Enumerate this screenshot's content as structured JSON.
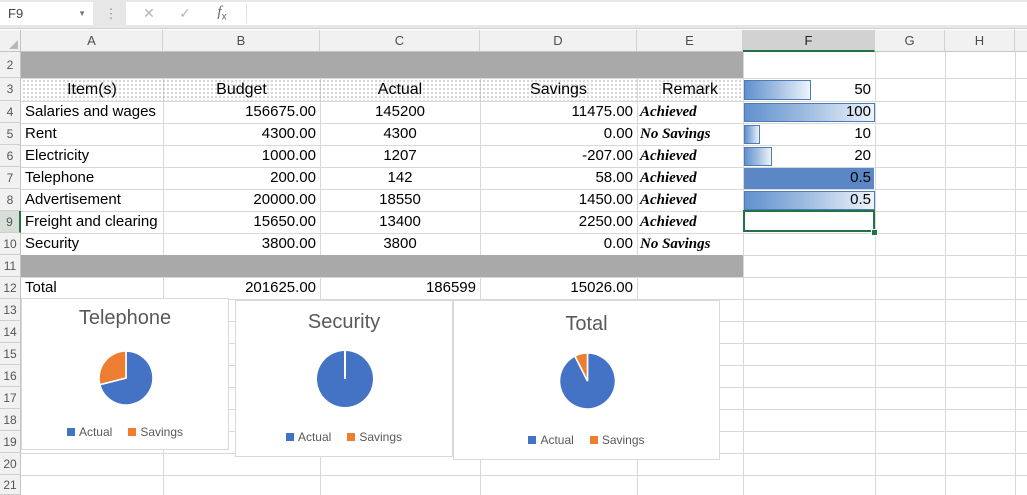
{
  "formula_bar": {
    "name_box": "F9",
    "cancel_label": "✕",
    "enter_label": "✓",
    "formula_value": ""
  },
  "grid": {
    "col_headers": [
      "A",
      "B",
      "C",
      "D",
      "E",
      "F",
      "G",
      "H"
    ],
    "first_row": 2,
    "last_row": 21
  },
  "selection": {
    "ref": "F9",
    "active_col": "F",
    "active_row": 9
  },
  "table": {
    "headers": {
      "item": "Item(s)",
      "budget": "Budget",
      "actual": "Actual",
      "savings": "Savings",
      "remark": "Remark"
    },
    "rows": [
      {
        "item": "Salaries and wages",
        "budget": "156675.00",
        "actual": "145200",
        "savings": "11475.00",
        "remark": "Achieved"
      },
      {
        "item": "Rent",
        "budget": "4300.00",
        "actual": "4300",
        "savings": "0.00",
        "remark": "No Savings"
      },
      {
        "item": "Electricity",
        "budget": "1000.00",
        "actual": "1207",
        "savings": "-207.00",
        "remark": "Achieved"
      },
      {
        "item": "Telephone",
        "budget": "200.00",
        "actual": "142",
        "savings": "58.00",
        "remark": "Achieved"
      },
      {
        "item": "Advertisement",
        "budget": "20000.00",
        "actual": "18550",
        "savings": "1450.00",
        "remark": "Achieved"
      },
      {
        "item": "Freight and clearing",
        "budget": "15650.00",
        "actual": "13400",
        "savings": "2250.00",
        "remark": "Achieved"
      },
      {
        "item": "Security",
        "budget": "3800.00",
        "actual": "3800",
        "savings": "0.00",
        "remark": "No Savings"
      }
    ],
    "total": {
      "item": "Total",
      "budget": "201625.00",
      "actual": "186599",
      "savings": "15026.00"
    }
  },
  "data_bars": [
    {
      "row": 3,
      "value": "50",
      "pct": 50.5,
      "fill": "gradient"
    },
    {
      "row": 4,
      "value": "100",
      "pct": 100,
      "fill": "gradient"
    },
    {
      "row": 5,
      "value": "10",
      "pct": 10.5,
      "fill": "gradient"
    },
    {
      "row": 6,
      "value": "20",
      "pct": 20.5,
      "fill": "gradient"
    },
    {
      "row": 7,
      "value": "0.5",
      "pct": 100,
      "fill": "solid"
    },
    {
      "row": 8,
      "value": "0.5",
      "pct": 100,
      "fill": "gradient"
    }
  ],
  "chart_data": [
    {
      "type": "pie",
      "title": "Telephone",
      "series": [
        "Actual",
        "Savings"
      ],
      "values": [
        142,
        58
      ]
    },
    {
      "type": "pie",
      "title": "Security",
      "series": [
        "Actual",
        "Savings"
      ],
      "values": [
        3800,
        0
      ]
    },
    {
      "type": "pie",
      "title": "Total",
      "series": [
        "Actual",
        "Savings"
      ],
      "values": [
        186599,
        15026
      ]
    }
  ],
  "colors": {
    "pie_actual": "#4472c4",
    "pie_savings": "#ed7d31",
    "selection_green": "#217346",
    "band_gray": "#a9a9a9",
    "bar_border": "#4e7ab8",
    "bar_solid": "#5b87c5",
    "bar_grad_start": "#6191ce"
  }
}
